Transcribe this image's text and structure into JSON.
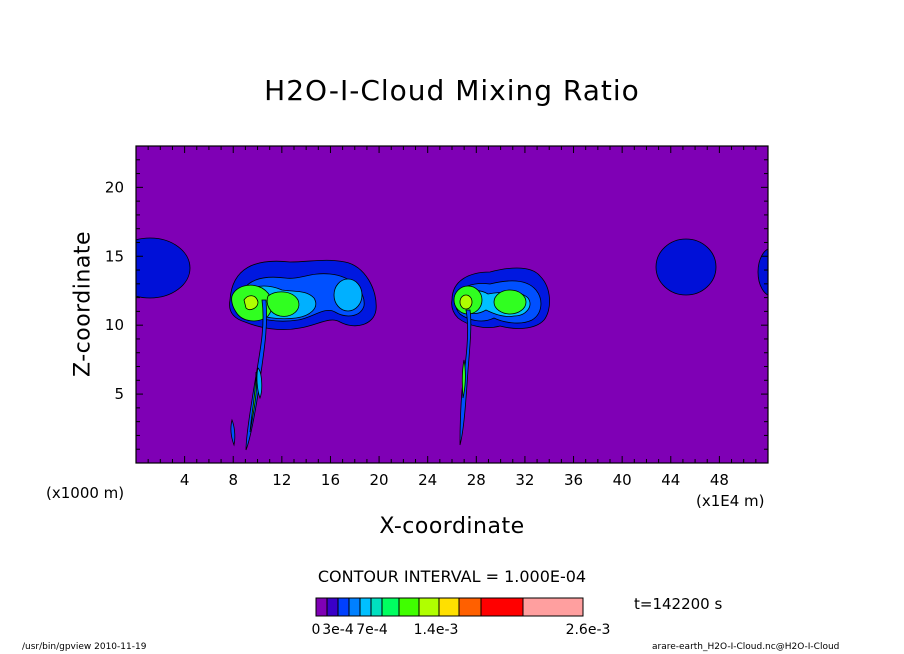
{
  "title": "H2O-I-Cloud Mixing Ratio",
  "chart_data": {
    "type": "heatmap",
    "title": "H2O-I-Cloud Mixing Ratio",
    "xlabel": "X-coordinate",
    "ylabel": "Z-coordinate",
    "x_unit": "(x1000 m)",
    "x_scale_note": "(x1E4 m)",
    "xlim": [
      0,
      52
    ],
    "ylim": [
      0,
      23
    ],
    "x_ticks": [
      4,
      8,
      12,
      16,
      20,
      24,
      28,
      32,
      36,
      40,
      44,
      48
    ],
    "y_ticks": [
      5,
      10,
      15,
      20
    ],
    "contour_interval": "CONTOUR INTERVAL = 1.000E-04",
    "time_label": "t=142200 s",
    "colorbar": {
      "levels": [
        "0",
        "3e-4",
        "7e-4",
        "1.4e-3",
        "2.6e-3"
      ],
      "colors": [
        "#7f00b5",
        "#3a00c8",
        "#0040ff",
        "#0080ff",
        "#00c0ff",
        "#00e0c0",
        "#00ff60",
        "#40ff00",
        "#b0ff00",
        "#ffe000",
        "#ff6000",
        "#ff0000",
        "#ff9f9f"
      ]
    },
    "background_color": "#7f00b5"
  },
  "footer": {
    "left": "/usr/bin/gpview   2010-11-19",
    "right": "arare-earth_H2O-I-Cloud.nc@H2O-I-Cloud"
  }
}
